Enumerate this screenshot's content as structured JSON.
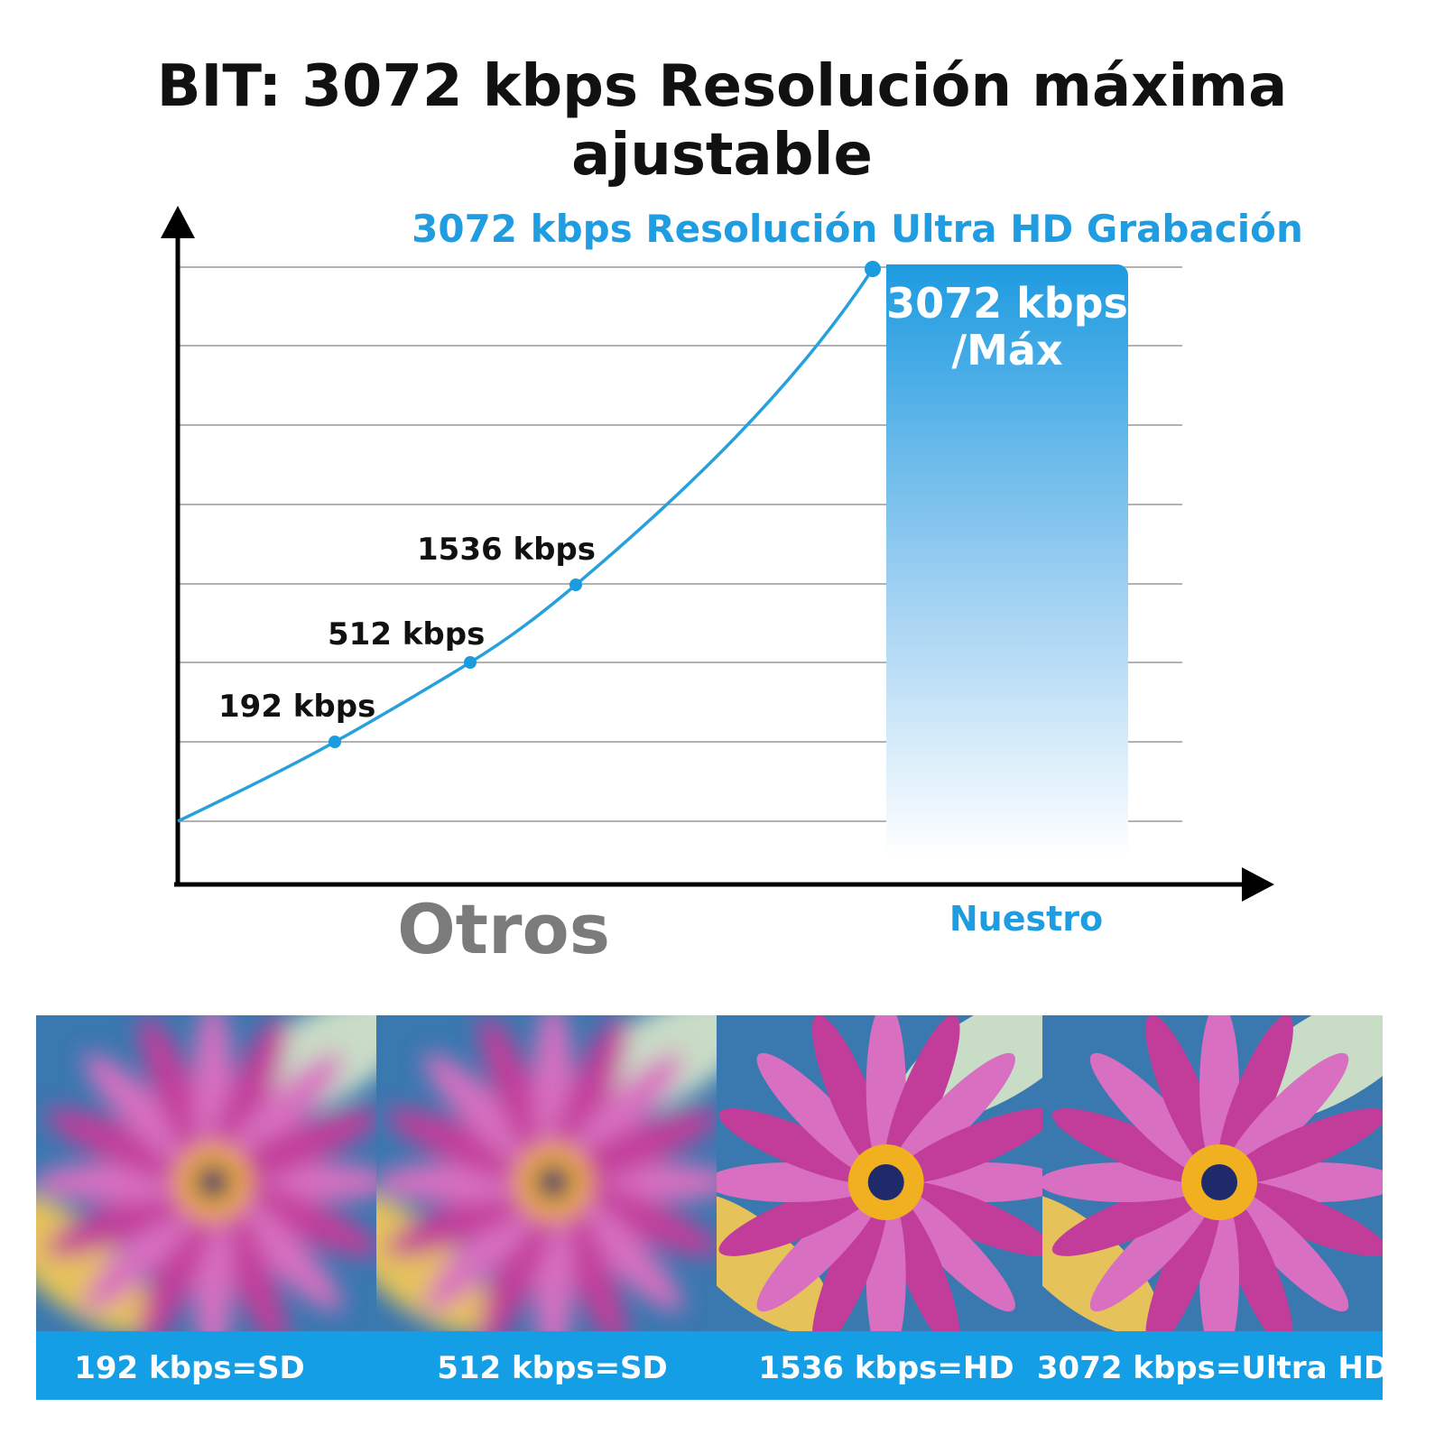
{
  "title": "BIT: 3072 kbps Resolución máxima ajustable",
  "subtitle": "3072 kbps Resolución Ultra HD Grabación",
  "curve_labels": [
    "192 kbps",
    "512 kbps",
    "1536 kbps"
  ],
  "highlight": {
    "line1": "3072 kbps",
    "line2": "/Máx"
  },
  "axis_labels": {
    "others": "Otros",
    "ours": "Nuestro"
  },
  "samples": [
    "192 kbps=SD",
    "512 kbps=SD",
    "1536 kbps=HD",
    "3072 kbps=Ultra HD"
  ]
}
